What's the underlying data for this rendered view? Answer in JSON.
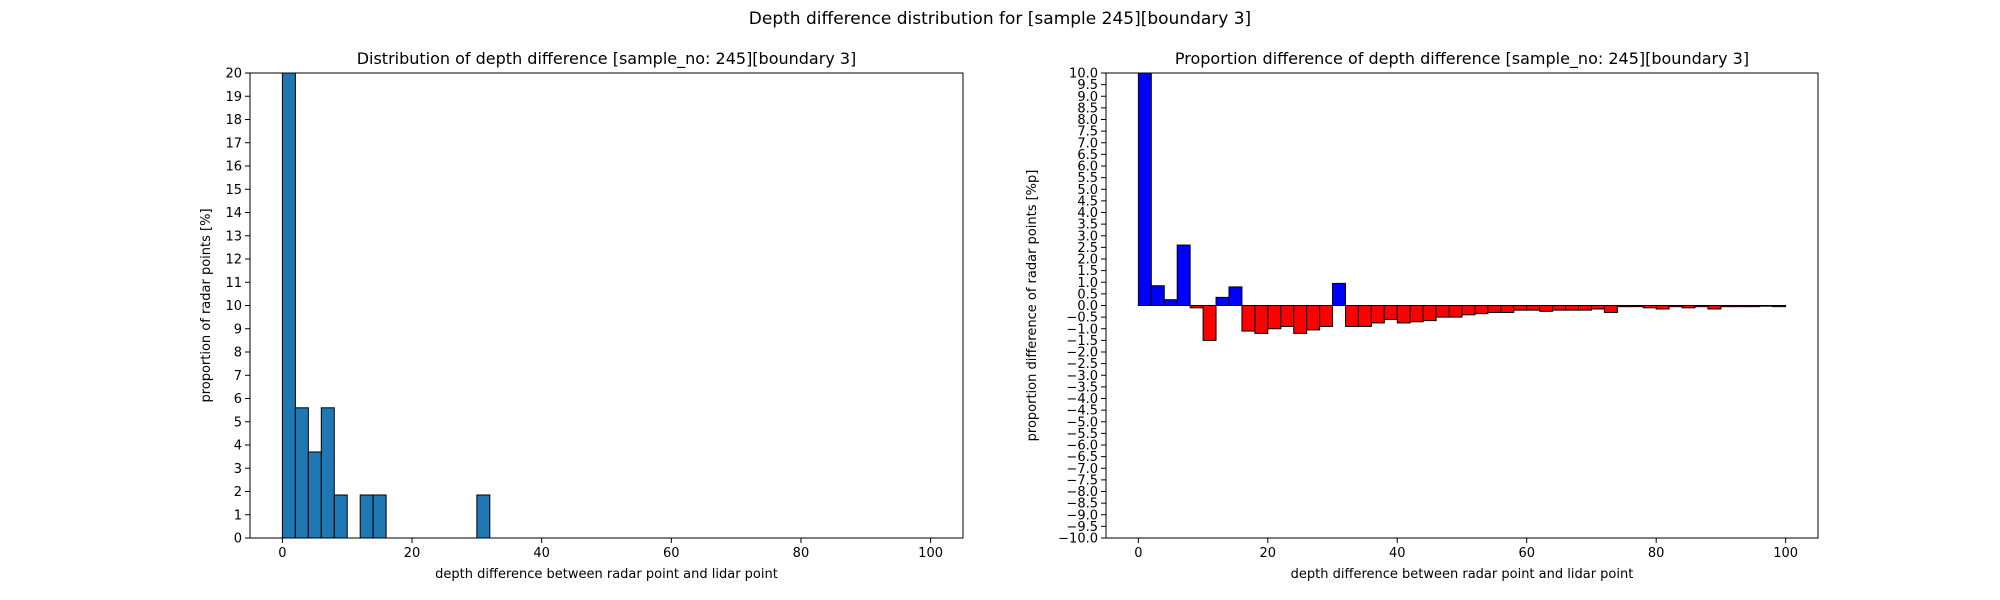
{
  "figure": {
    "suptitle": "Depth difference distribution for [sample 245][boundary 3]"
  },
  "chart_data": [
    {
      "type": "bar",
      "title": "Distribution of depth difference [sample_no: 245][boundary 3]",
      "xlabel": "depth difference between radar point and lidar point",
      "ylabel": "proportion of radar points [%]",
      "xlim": [
        -5,
        105
      ],
      "ylim": [
        0,
        20
      ],
      "x_ticks": [
        0,
        20,
        40,
        60,
        80,
        100
      ],
      "y_ticks": [
        0,
        1,
        2,
        3,
        4,
        5,
        6,
        7,
        8,
        9,
        10,
        11,
        12,
        13,
        14,
        15,
        16,
        17,
        18,
        19,
        20
      ],
      "bin_width": 2,
      "bar_color": "#1f77b4",
      "edge_color": "#000000",
      "bars": [
        {
          "x": 0,
          "value": 20.0
        },
        {
          "x": 2,
          "value": 5.6
        },
        {
          "x": 4,
          "value": 3.7
        },
        {
          "x": 6,
          "value": 5.6
        },
        {
          "x": 8,
          "value": 1.85
        },
        {
          "x": 12,
          "value": 1.85
        },
        {
          "x": 14,
          "value": 1.85
        },
        {
          "x": 30,
          "value": 1.85
        }
      ]
    },
    {
      "type": "bar",
      "title": "Proportion difference of depth difference [sample_no: 245][boundary 3]",
      "xlabel": "depth difference between radar point and lidar point",
      "ylabel": "proportion difference of radar points [%p]",
      "xlim": [
        -5,
        105
      ],
      "ylim": [
        -10,
        10
      ],
      "x_ticks": [
        0,
        20,
        40,
        60,
        80,
        100
      ],
      "y_ticks": [
        "10.0",
        "9.5",
        "9.0",
        "8.5",
        "8.0",
        "7.5",
        "7.0",
        "6.5",
        "6.0",
        "5.5",
        "5.0",
        "4.5",
        "4.0",
        "3.5",
        "3.0",
        "2.5",
        "2.0",
        "1.5",
        "1.0",
        "0.5",
        "0.0",
        "−0.5",
        "−1.0",
        "−1.5",
        "−2.0",
        "−2.5",
        "−3.0",
        "−3.5",
        "−4.0",
        "−4.5",
        "−5.0",
        "−5.5",
        "−6.0",
        "−6.5",
        "−7.0",
        "−7.5",
        "−8.0",
        "−8.5",
        "−9.0",
        "−9.5",
        "−10.0"
      ],
      "bin_width": 2,
      "positive_color": "#0000ff",
      "negative_color": "#ff0000",
      "edge_color": "#000000",
      "bars": [
        {
          "x": 0,
          "value": 10.0
        },
        {
          "x": 2,
          "value": 0.85
        },
        {
          "x": 4,
          "value": 0.25
        },
        {
          "x": 6,
          "value": 2.6
        },
        {
          "x": 8,
          "value": -0.1
        },
        {
          "x": 10,
          "value": -1.5
        },
        {
          "x": 12,
          "value": 0.35
        },
        {
          "x": 14,
          "value": 0.8
        },
        {
          "x": 16,
          "value": -1.1
        },
        {
          "x": 18,
          "value": -1.2
        },
        {
          "x": 20,
          "value": -1.0
        },
        {
          "x": 22,
          "value": -0.9
        },
        {
          "x": 24,
          "value": -1.2
        },
        {
          "x": 26,
          "value": -1.05
        },
        {
          "x": 28,
          "value": -0.9
        },
        {
          "x": 30,
          "value": 0.95
        },
        {
          "x": 32,
          "value": -0.9
        },
        {
          "x": 34,
          "value": -0.9
        },
        {
          "x": 36,
          "value": -0.75
        },
        {
          "x": 38,
          "value": -0.6
        },
        {
          "x": 40,
          "value": -0.75
        },
        {
          "x": 42,
          "value": -0.7
        },
        {
          "x": 44,
          "value": -0.65
        },
        {
          "x": 46,
          "value": -0.5
        },
        {
          "x": 48,
          "value": -0.5
        },
        {
          "x": 50,
          "value": -0.4
        },
        {
          "x": 52,
          "value": -0.35
        },
        {
          "x": 54,
          "value": -0.3
        },
        {
          "x": 56,
          "value": -0.3
        },
        {
          "x": 58,
          "value": -0.2
        },
        {
          "x": 60,
          "value": -0.2
        },
        {
          "x": 62,
          "value": -0.25
        },
        {
          "x": 64,
          "value": -0.2
        },
        {
          "x": 66,
          "value": -0.2
        },
        {
          "x": 68,
          "value": -0.2
        },
        {
          "x": 70,
          "value": -0.15
        },
        {
          "x": 72,
          "value": -0.3
        },
        {
          "x": 74,
          "value": -0.05
        },
        {
          "x": 76,
          "value": -0.05
        },
        {
          "x": 78,
          "value": -0.1
        },
        {
          "x": 80,
          "value": -0.15
        },
        {
          "x": 82,
          "value": -0.05
        },
        {
          "x": 84,
          "value": -0.1
        },
        {
          "x": 86,
          "value": -0.05
        },
        {
          "x": 88,
          "value": -0.15
        },
        {
          "x": 90,
          "value": -0.05
        },
        {
          "x": 92,
          "value": -0.05
        },
        {
          "x": 94,
          "value": -0.05
        },
        {
          "x": 96,
          "value": -0.03
        },
        {
          "x": 98,
          "value": -0.05
        }
      ]
    }
  ]
}
